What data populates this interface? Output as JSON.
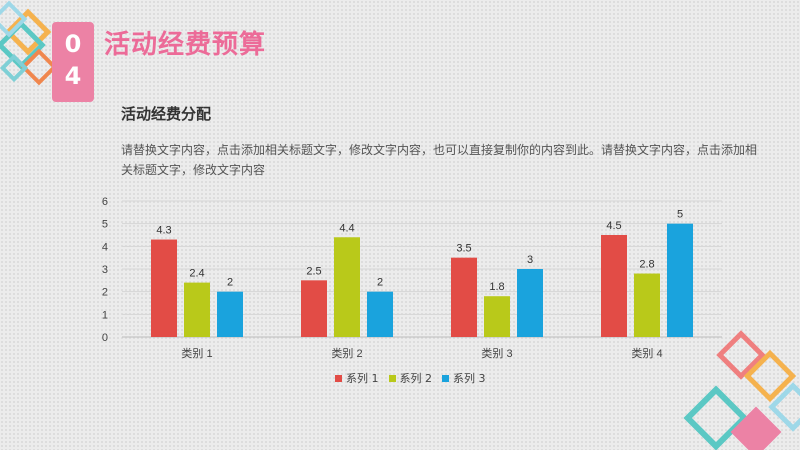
{
  "header": {
    "section_digit_1": "0",
    "section_digit_2": "4",
    "title": "活动经费预算"
  },
  "content": {
    "subtitle": "活动经费分配",
    "description": "请替换文字内容，点击添加相关标题文字，修改文字内容，也可以直接复制你的内容到此。请替换文字内容，点击添加相关标题文字，修改文字内容"
  },
  "colors": {
    "accent_pink": "#ec6b98",
    "badge_pink": "#ec82a5"
  },
  "chart_data": {
    "type": "bar",
    "categories": [
      "类别 1",
      "类别 2",
      "类别 3",
      "类别 4"
    ],
    "series": [
      {
        "name": "系列 1",
        "values": [
          4.3,
          2.5,
          3.5,
          4.5
        ],
        "color": "#e24c46"
      },
      {
        "name": "系列 2",
        "values": [
          2.4,
          4.4,
          1.8,
          2.8
        ],
        "color": "#b9c91a"
      },
      {
        "name": "系列 3",
        "values": [
          2,
          2,
          3,
          5
        ],
        "color": "#1aa3dd"
      }
    ],
    "ylim": [
      0,
      6
    ],
    "yticks": [
      "0",
      "1",
      "2",
      "3",
      "4",
      "5",
      "6"
    ],
    "grid": true,
    "legend": "bottom"
  }
}
